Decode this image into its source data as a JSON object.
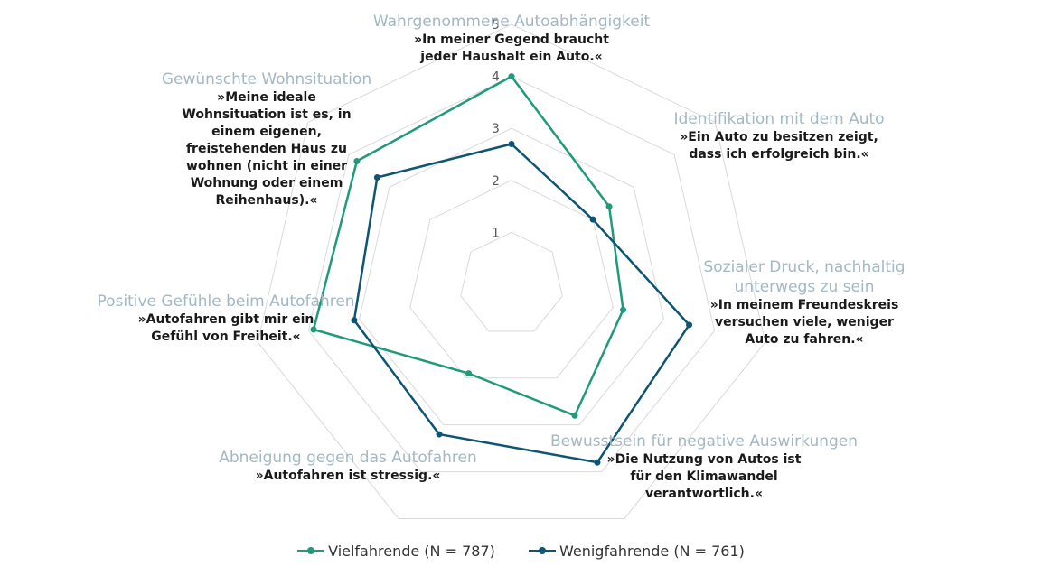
{
  "chart_data": {
    "type": "radar",
    "range": [
      0,
      5
    ],
    "ticks": [
      "1",
      "2",
      "3",
      "4",
      "5"
    ],
    "grid": true,
    "legend_position": "bottom",
    "axes": [
      {
        "title": "Wahrgenommene Autoabhängigkeit",
        "quote": [
          "»In meiner Gegend braucht",
          "jeder Haushalt ein Auto.«"
        ]
      },
      {
        "title": "Identifikation mit dem Auto",
        "quote": [
          "»Ein Auto zu besitzen zeigt,",
          "dass ich erfolgreich bin.«"
        ]
      },
      {
        "title": "Sozialer Druck, nachhaltig unterwegs zu sein",
        "quote": [
          "»In meinem Freundeskreis",
          "versuchen viele, weniger",
          "Auto zu fahren.«"
        ]
      },
      {
        "title": "Bewusstsein für negative Auswirkungen",
        "quote": [
          "»Die Nutzung von Autos ist",
          "für den Klimawandel",
          "verantwortlich.«"
        ]
      },
      {
        "title": "Abneigung gegen das Autofahren",
        "quote": [
          "»Autofahren ist stressig.«"
        ]
      },
      {
        "title": "Positive Gefühle beim Autofahren",
        "quote": [
          "»Autofahren gibt mir ein",
          "Gefühl von Freiheit.«"
        ]
      },
      {
        "title": "Gewünschte Wohnsituation",
        "quote": [
          "»Meine ideale",
          "Wohnsituation ist es, in",
          "einem eigenen,",
          "freistehenden Haus zu",
          "wohnen (nicht in einer",
          "Wohnung oder einem",
          "Reihenhaus).«"
        ]
      }
    ],
    "series": [
      {
        "name": "Vielfahrende (N = 787)",
        "color": "#1f9a7a",
        "values": [
          4.0,
          2.4,
          2.2,
          2.8,
          1.9,
          3.9,
          3.8
        ]
      },
      {
        "name": "Wenigfahrende (N = 761)",
        "color": "#0d5573",
        "values": [
          2.7,
          2.0,
          3.5,
          3.8,
          3.2,
          3.1,
          3.3
        ]
      }
    ]
  }
}
